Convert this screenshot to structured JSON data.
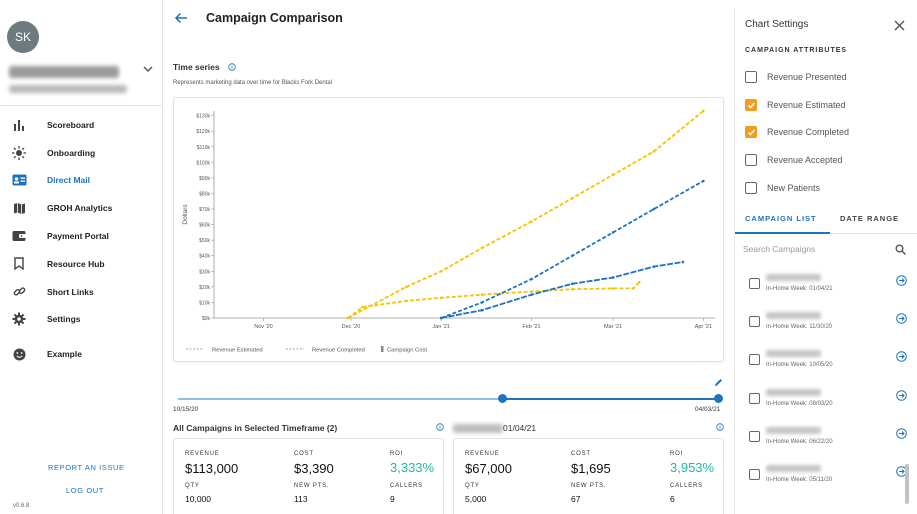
{
  "sidebar": {
    "avatar_initials": "SK",
    "nav": [
      {
        "label": "Scoreboard",
        "icon": "bar-chart-icon"
      },
      {
        "label": "Onboarding",
        "icon": "sun-icon"
      },
      {
        "label": "Direct Mail",
        "icon": "mail-card-icon",
        "active": true
      },
      {
        "label": "GROH Analytics",
        "icon": "map-icon"
      },
      {
        "label": "Payment Portal",
        "icon": "wallet-icon"
      },
      {
        "label": "Resource Hub",
        "icon": "bookmark-icon"
      },
      {
        "label": "Short Links",
        "icon": "link-icon"
      },
      {
        "label": "Settings",
        "icon": "gear-icon"
      },
      {
        "label": "Example",
        "icon": "smiley-icon"
      }
    ],
    "report_issue": "REPORT AN ISSUE",
    "logout": "LOG OUT",
    "version": "v0.6.8"
  },
  "header": {
    "title": "Campaign Comparison"
  },
  "timeseries": {
    "title": "Time series",
    "subtitle": "Represents marketing data over time for Blacks Fork Dental"
  },
  "chart_data": {
    "type": "line",
    "ylabel": "Dollars",
    "xlabel": "",
    "x_ticks": [
      "Nov '20",
      "Dec '20",
      "Jan '21",
      "Feb '21",
      "Mar '21",
      "Apr '21"
    ],
    "y_ticks": [
      "$0k",
      "$10k",
      "$20k",
      "$30k",
      "$40k",
      "$50k",
      "$60k",
      "$70k",
      "$80k",
      "$90k",
      "$100k",
      "$110k",
      "$120k",
      "$130k"
    ],
    "ylim": [
      0,
      133000
    ],
    "legend": [
      "Revenue Estimated",
      "Revenue Completed",
      "Campaign Cost"
    ],
    "series": [
      {
        "name": "Revenue Estimated",
        "color": "#f5c400",
        "style": "dashed",
        "x": [
          "2020-11-30",
          "2020-12-20",
          "2021-01-01",
          "2021-01-15",
          "2021-02-01",
          "2021-02-15",
          "2021-03-01",
          "2021-03-15",
          "2021-04-01"
        ],
        "y": [
          0,
          20000,
          30000,
          45000,
          62000,
          77000,
          92000,
          107000,
          133000
        ]
      },
      {
        "name": "Revenue Completed",
        "color": "#f5c400",
        "style": "dashed",
        "x": [
          "2020-11-30",
          "2020-12-05",
          "2020-12-20",
          "2021-01-01",
          "2021-01-15",
          "2021-02-01",
          "2021-02-15",
          "2021-03-01",
          "2021-03-08",
          "2021-03-10"
        ],
        "y": [
          0,
          7000,
          11000,
          13000,
          15000,
          17000,
          18500,
          19000,
          19000,
          23000
        ]
      },
      {
        "name": "Revenue Completed",
        "color": "#1e73be",
        "style": "dashed",
        "x": [
          "2021-01-01",
          "2021-01-15",
          "2021-02-01",
          "2021-02-15",
          "2021-03-01",
          "2021-03-15",
          "2021-04-01"
        ],
        "y": [
          0,
          10000,
          25000,
          40000,
          55000,
          70000,
          88000
        ]
      },
      {
        "name": "Revenue Estimated",
        "color": "#1e73be",
        "style": "solid-dotted",
        "x": [
          "2021-01-01",
          "2021-01-15",
          "2021-02-01",
          "2021-02-15",
          "2021-03-01",
          "2021-03-15",
          "2021-03-25"
        ],
        "y": [
          0,
          5000,
          15000,
          22000,
          26000,
          33000,
          36000
        ]
      }
    ]
  },
  "slider": {
    "start": "10/15/20",
    "end": "04/03/21",
    "value": 0.6
  },
  "all_campaigns": {
    "title": "All Campaigns in Selected Timeframe (2)",
    "revenue_label": "REVENUE",
    "revenue": "$113,000",
    "cost_label": "COST",
    "cost": "$3,390",
    "roi_label": "ROI",
    "roi": "3,333%",
    "qty_label": "QTY",
    "qty": "10,000",
    "newpts_label": "NEW PTS.",
    "newpts": "113",
    "callers_label": "CALLERS",
    "callers": "9"
  },
  "campaign_2": {
    "title": "01/04/21",
    "revenue_label": "REVENUE",
    "revenue": "$67,000",
    "cost_label": "COST",
    "cost": "$1,695",
    "roi_label": "ROI",
    "roi": "3,953%",
    "qty_label": "QTY",
    "qty": "5,000",
    "newpts_label": "NEW PTS.",
    "newpts": "67",
    "callers_label": "CALLERS",
    "callers": "6"
  },
  "settings": {
    "title": "Chart Settings",
    "attributes_header": "CAMPAIGN ATTRIBUTES",
    "attributes": [
      {
        "label": "Revenue Presented",
        "checked": false
      },
      {
        "label": "Revenue Estimated",
        "checked": true
      },
      {
        "label": "Revenue Completed",
        "checked": true
      },
      {
        "label": "Revenue Accepted",
        "checked": false
      },
      {
        "label": "New Patients",
        "checked": false
      }
    ],
    "tabs": [
      "CAMPAIGN LIST",
      "DATE RANGE"
    ],
    "search_placeholder": "Search Campaigns",
    "campaigns": [
      {
        "date": "In-Home Week: 01/04/21"
      },
      {
        "date": "In-Home Week: 11/30/20"
      },
      {
        "date": "In-Home Week: 10/05/20"
      },
      {
        "date": "In-Home Week: 08/03/20"
      },
      {
        "date": "In-Home Week: 06/22/20"
      },
      {
        "date": "In-Home Week: 05/11/20"
      }
    ]
  },
  "colors": {
    "accent": "#1e73be",
    "orange": "#f39c1f",
    "gold": "#f5c400",
    "green": "#1fb8a2"
  }
}
